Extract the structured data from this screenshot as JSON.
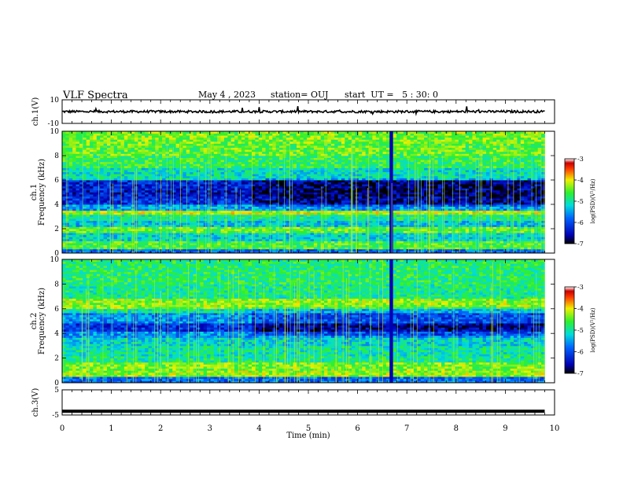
{
  "header": {
    "title": "VLF Spectra",
    "date": "May 4 , 2023",
    "station": "station= OUJ",
    "start": "start  UT =   5 : 30: 0"
  },
  "chart_data": [
    {
      "type": "line",
      "panel": "waveform-ch1",
      "ylabel": "ch.1(V)",
      "ylim": [
        -10,
        10
      ],
      "ytick_labels": [
        "10",
        "-10"
      ],
      "xlim": [
        0,
        10
      ],
      "baseline_value": 0,
      "description_values": {
        "typical_amplitude_V": 1,
        "max_spike_V": 7
      }
    },
    {
      "type": "heatmap",
      "panel": "spectrogram-ch1",
      "ylabel": "ch.1 Frequency (kHz)",
      "ylim": [
        0,
        10
      ],
      "ytick_labels": [
        "0",
        "2",
        "4",
        "6",
        "8",
        "10"
      ],
      "xlim": [
        0,
        10
      ],
      "data_end_min": 9.8,
      "colorbar": {
        "label": "log(PSD)(V²/Hz)",
        "range": [
          -7,
          -3
        ],
        "tick_labels": [
          "-3",
          "-4",
          "-5",
          "-6",
          "-7"
        ]
      },
      "bands": [
        {
          "f_from": 0,
          "f_to": 0.3,
          "level": -5.8
        },
        {
          "f_from": 0.3,
          "f_to": 1.0,
          "level": -4.6
        },
        {
          "f_from": 1.0,
          "f_to": 1.6,
          "level": -5.2
        },
        {
          "f_from": 1.6,
          "f_to": 2.1,
          "level": -4.5
        },
        {
          "f_from": 2.1,
          "f_to": 2.6,
          "level": -5.3
        },
        {
          "f_from": 2.6,
          "f_to": 3.1,
          "level": -4.9
        },
        {
          "f_from": 3.1,
          "f_to": 3.5,
          "level": -4.2
        },
        {
          "f_from": 3.5,
          "f_to": 4.0,
          "level": -5.5
        },
        {
          "f_from": 4.0,
          "f_to": 4.6,
          "level": -6.2
        },
        {
          "f_from": 4.6,
          "f_to": 5.2,
          "level": -6.4
        },
        {
          "f_from": 5.2,
          "f_to": 6.0,
          "level": -6.3
        },
        {
          "f_from": 6.0,
          "f_to": 7.0,
          "level": -5.1
        },
        {
          "f_from": 7.0,
          "f_to": 8.0,
          "level": -4.7
        },
        {
          "f_from": 8.0,
          "f_to": 9.0,
          "level": -4.5
        },
        {
          "f_from": 9.0,
          "f_to": 10.0,
          "level": -4.4
        }
      ],
      "dark_column_min": 6.65
    },
    {
      "type": "heatmap",
      "panel": "spectrogram-ch2",
      "ylabel": "ch.2 Frequency (kHz)",
      "ylim": [
        0,
        10
      ],
      "ytick_labels": [
        "0",
        "2",
        "4",
        "6",
        "8",
        "10"
      ],
      "xlim": [
        0,
        10
      ],
      "data_end_min": 9.8,
      "colorbar": {
        "label": "log(PSD)(V²/Hz)",
        "range": [
          -7,
          -3
        ],
        "tick_labels": [
          "-3",
          "-4",
          "-5",
          "-6",
          "-7"
        ]
      },
      "bands": [
        {
          "f_from": 0,
          "f_to": 0.5,
          "level": -5.8
        },
        {
          "f_from": 0.5,
          "f_to": 1.0,
          "level": -4.3
        },
        {
          "f_from": 1.0,
          "f_to": 1.6,
          "level": -4.4
        },
        {
          "f_from": 1.6,
          "f_to": 2.2,
          "level": -4.9
        },
        {
          "f_from": 2.2,
          "f_to": 3.0,
          "level": -5.0
        },
        {
          "f_from": 3.0,
          "f_to": 3.6,
          "level": -5.2
        },
        {
          "f_from": 3.6,
          "f_to": 4.2,
          "level": -5.6
        },
        {
          "f_from": 4.2,
          "f_to": 4.9,
          "level": -6.2
        },
        {
          "f_from": 4.9,
          "f_to": 5.6,
          "level": -5.6
        },
        {
          "f_from": 5.6,
          "f_to": 6.0,
          "level": -5.0
        },
        {
          "f_from": 6.0,
          "f_to": 6.8,
          "level": -4.3
        },
        {
          "f_from": 6.8,
          "f_to": 8.0,
          "level": -4.9
        },
        {
          "f_from": 8.0,
          "f_to": 10.0,
          "level": -4.8
        }
      ],
      "dark_column_min": 6.65
    },
    {
      "type": "line",
      "panel": "waveform-ch3",
      "ylabel": "ch.3(V)",
      "ylim": [
        -5,
        5
      ],
      "ytick_labels": [
        "5",
        "-5"
      ],
      "xlim": [
        0,
        10
      ],
      "constant_value": -3.5
    }
  ],
  "xaxis": {
    "label": "Time  (min)",
    "tick_values": [
      0,
      1,
      2,
      3,
      4,
      5,
      6,
      7,
      8,
      9,
      10
    ],
    "tick_labels": [
      "0",
      "1",
      "2",
      "3",
      "4",
      "5",
      "6",
      "7",
      "8",
      "9",
      "10"
    ]
  }
}
